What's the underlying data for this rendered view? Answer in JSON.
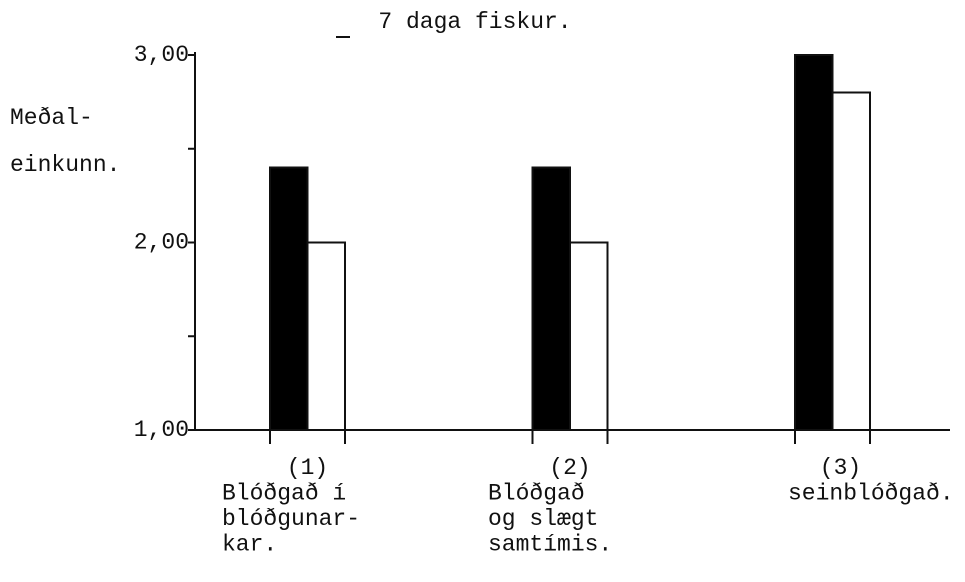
{
  "chart_data": {
    "type": "bar",
    "title": "7 daga fiskur.",
    "y_label": [
      "Meðal-",
      "einkunn."
    ],
    "categories": [
      [
        "(1)",
        "Blóðgað í",
        "blóðgunar-",
        "kar."
      ],
      [
        "(2)",
        "Blóðgað",
        "og slægt",
        "samtímis."
      ],
      [
        "(3)",
        "seinblóðgað."
      ]
    ],
    "series": [
      {
        "color": "#000000",
        "values": [
          2.4,
          2.4,
          3.0
        ]
      },
      {
        "color": "#ffffff",
        "values": [
          2.0,
          2.0,
          2.8
        ]
      }
    ],
    "ylim": [
      1,
      3
    ],
    "yticks": [
      {
        "value": 1,
        "label": "1,00"
      },
      {
        "value": 2,
        "label": "2,00"
      },
      {
        "value": 3,
        "label": "3,00"
      }
    ]
  }
}
